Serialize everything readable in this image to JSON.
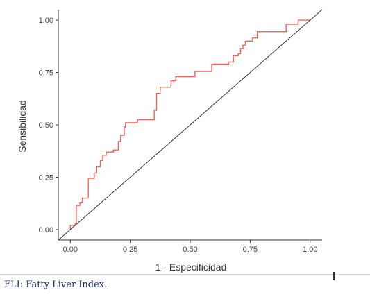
{
  "chart_data": {
    "type": "line",
    "xlabel": "1 - Especificidad",
    "ylabel": "Sensibilidad",
    "xlim": [
      -0.05,
      1.05
    ],
    "ylim": [
      -0.05,
      1.05
    ],
    "xticks": [
      "0.00",
      "0.25",
      "0.50",
      "0.75",
      "1.00"
    ],
    "yticks": [
      "0.00",
      "0.25",
      "0.50",
      "0.75",
      "1.00"
    ],
    "grid": false,
    "series": [
      {
        "color": "#f0645a",
        "x": [
          0.0,
          0.0,
          0.02,
          0.02,
          0.025,
          0.025,
          0.04,
          0.04,
          0.05,
          0.05,
          0.075,
          0.075,
          0.1,
          0.1,
          0.11,
          0.11,
          0.125,
          0.125,
          0.135,
          0.135,
          0.15,
          0.15,
          0.18,
          0.18,
          0.2,
          0.2,
          0.21,
          0.21,
          0.225,
          0.225,
          0.23,
          0.23,
          0.28,
          0.28,
          0.35,
          0.35,
          0.36,
          0.36,
          0.375,
          0.375,
          0.42,
          0.42,
          0.44,
          0.44,
          0.52,
          0.52,
          0.59,
          0.59,
          0.66,
          0.66,
          0.68,
          0.68,
          0.7,
          0.7,
          0.71,
          0.71,
          0.72,
          0.72,
          0.73,
          0.73,
          0.76,
          0.76,
          0.78,
          0.78,
          0.9,
          0.9,
          0.95,
          0.95,
          1.0
        ],
        "y": [
          0.0,
          0.02,
          0.02,
          0.03,
          0.03,
          0.115,
          0.115,
          0.13,
          0.13,
          0.15,
          0.15,
          0.245,
          0.245,
          0.27,
          0.27,
          0.3,
          0.3,
          0.33,
          0.33,
          0.355,
          0.355,
          0.37,
          0.37,
          0.38,
          0.38,
          0.42,
          0.42,
          0.45,
          0.45,
          0.49,
          0.49,
          0.51,
          0.51,
          0.525,
          0.525,
          0.57,
          0.57,
          0.65,
          0.65,
          0.68,
          0.68,
          0.71,
          0.71,
          0.73,
          0.73,
          0.755,
          0.755,
          0.79,
          0.79,
          0.8,
          0.8,
          0.83,
          0.83,
          0.84,
          0.84,
          0.865,
          0.865,
          0.88,
          0.88,
          0.9,
          0.9,
          0.915,
          0.915,
          0.945,
          0.945,
          0.98,
          0.98,
          1.0,
          1.0
        ]
      },
      {
        "color": "#333333",
        "x": [
          -0.05,
          1.05
        ],
        "y": [
          -0.05,
          1.05
        ]
      }
    ]
  },
  "caption": {
    "text": "FLI: Fatty Liver Index."
  }
}
